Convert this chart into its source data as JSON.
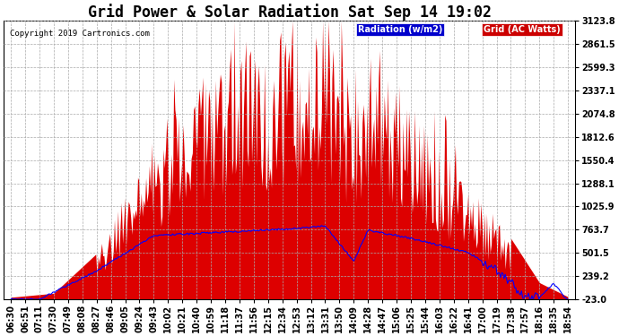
{
  "title": "Grid Power & Solar Radiation Sat Sep 14 19:02",
  "copyright": "Copyright 2019 Cartronics.com",
  "ylim_min": -23.0,
  "ylim_max": 3123.8,
  "ytick_values": [
    3123.8,
    2861.5,
    2599.3,
    2337.1,
    2074.8,
    1812.6,
    1550.4,
    1288.1,
    1025.9,
    763.7,
    501.5,
    239.2,
    -23.0
  ],
  "legend_radiation_label": "Radiation (w/m2)",
  "legend_grid_label": "Grid (AC Watts)",
  "legend_radiation_color": "#0000cc",
  "legend_grid_color": "#cc0000",
  "bg_color": "#ffffff",
  "radiation_color": "#dd0000",
  "grid_line_color": "#0000ff",
  "grid_dash_color": "#cccccc",
  "title_fontsize": 12,
  "tick_fontsize": 7,
  "time_labels": [
    "06:30",
    "06:51",
    "07:11",
    "07:30",
    "07:49",
    "08:08",
    "08:27",
    "08:46",
    "09:05",
    "09:24",
    "09:43",
    "10:02",
    "10:21",
    "10:40",
    "10:59",
    "11:18",
    "11:37",
    "11:56",
    "12:15",
    "12:34",
    "12:53",
    "13:12",
    "13:31",
    "13:50",
    "14:09",
    "14:28",
    "14:47",
    "15:06",
    "15:25",
    "15:44",
    "16:03",
    "16:22",
    "16:41",
    "17:00",
    "17:19",
    "17:38",
    "17:57",
    "18:16",
    "18:35",
    "18:54"
  ]
}
